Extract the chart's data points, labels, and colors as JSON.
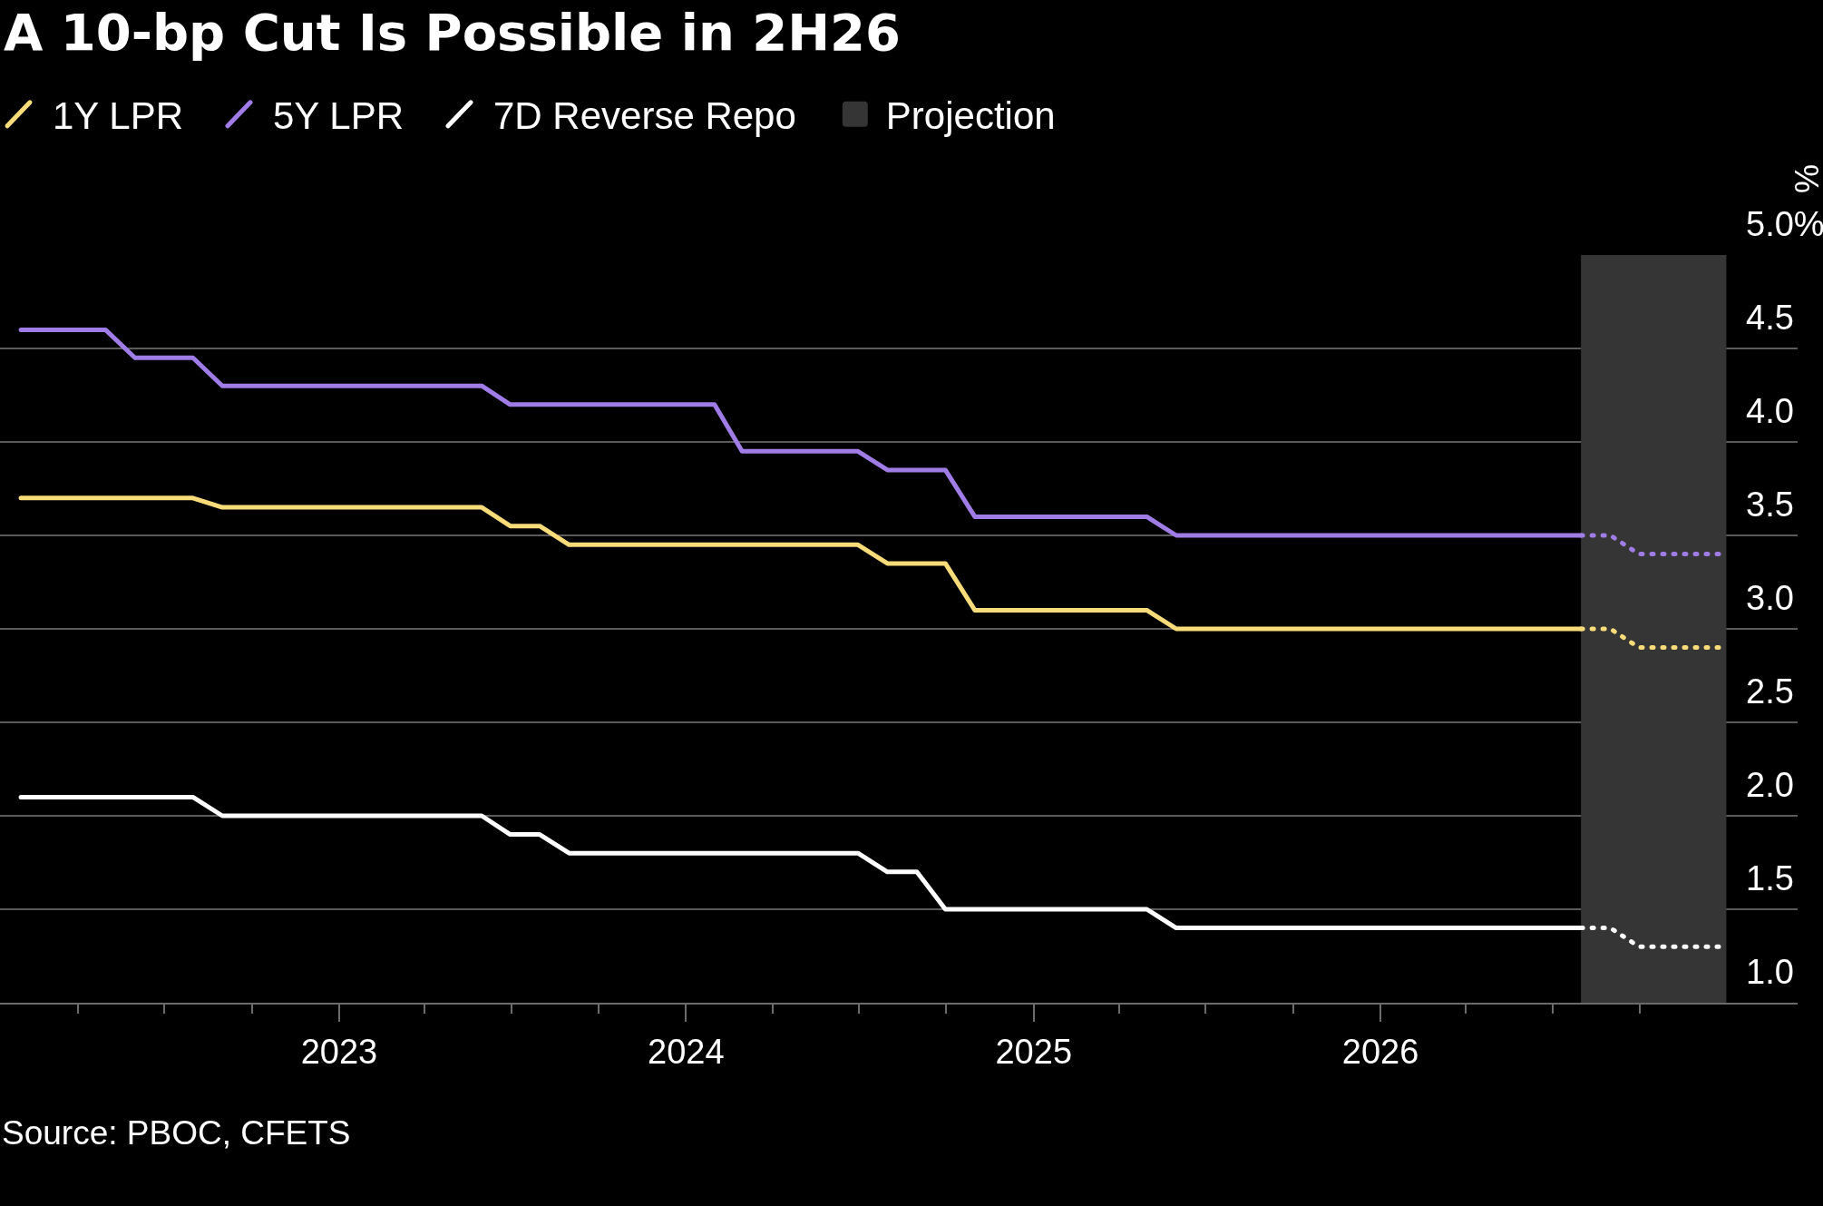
{
  "chart_data": {
    "type": "line",
    "title": "A 10-bp Cut Is Possible in 2H26",
    "ylabel": "%",
    "annotations": [
      "Source: PBOC, CFETS"
    ],
    "series": [
      {
        "name": "1Y LPR",
        "color": "#f9dc7a",
        "x": [
          "2022-01-31",
          "2022-07-31",
          "2022-08-31",
          "2023-05-31",
          "2023-06-30",
          "2023-07-31",
          "2023-08-31",
          "2024-06-30",
          "2024-07-31",
          "2024-09-30",
          "2024-10-31",
          "2025-04-30",
          "2025-05-31",
          "2026-07-31"
        ],
        "values": [
          3.7,
          3.7,
          3.65,
          3.65,
          3.55,
          3.55,
          3.45,
          3.45,
          3.35,
          3.35,
          3.1,
          3.1,
          3.0,
          3.0
        ]
      },
      {
        "name": "5Y LPR",
        "color": "#a07de6",
        "x": [
          "2022-01-31",
          "2022-04-30",
          "2022-05-31",
          "2022-07-31",
          "2022-08-31",
          "2023-05-31",
          "2023-06-30",
          "2024-01-31",
          "2024-02-29",
          "2024-06-30",
          "2024-07-31",
          "2024-09-30",
          "2024-10-31",
          "2025-04-30",
          "2025-05-31",
          "2026-07-31"
        ],
        "values": [
          4.6,
          4.6,
          4.45,
          4.45,
          4.3,
          4.3,
          4.2,
          4.2,
          3.95,
          3.95,
          3.85,
          3.85,
          3.6,
          3.6,
          3.5,
          3.5
        ]
      },
      {
        "name": "7D Reverse Repo",
        "color": "#ffffff",
        "x": [
          "2022-01-31",
          "2022-07-31",
          "2022-08-31",
          "2023-05-31",
          "2023-06-30",
          "2023-07-31",
          "2023-08-31",
          "2024-06-30",
          "2024-07-31",
          "2024-08-31",
          "2024-09-30",
          "2025-04-30",
          "2025-05-31",
          "2026-07-31"
        ],
        "values": [
          2.1,
          2.1,
          2.0,
          2.0,
          1.9,
          1.9,
          1.8,
          1.8,
          1.7,
          1.7,
          1.5,
          1.5,
          1.4,
          1.4
        ]
      },
      {
        "color": "#f9dc7a",
        "line_style": "dotted",
        "x": [
          "2026-07-31",
          "2026-08-31",
          "2026-09-30",
          "2026-12-31"
        ],
        "values": [
          3.0,
          3.0,
          2.9,
          2.9
        ]
      },
      {
        "color": "#a07de6",
        "line_style": "dotted",
        "x": [
          "2026-07-31",
          "2026-08-31",
          "2026-09-30",
          "2026-12-31"
        ],
        "values": [
          3.5,
          3.5,
          3.4,
          3.4
        ]
      },
      {
        "color": "#ffffff",
        "line_style": "dotted",
        "x": [
          "2026-07-31",
          "2026-08-31",
          "2026-09-30",
          "2026-12-31"
        ],
        "values": [
          1.4,
          1.4,
          1.3,
          1.3
        ]
      }
    ],
    "bands": [
      {
        "axis": "x",
        "from": "2026-07-31",
        "to": "2026-12-31",
        "label": "Projection",
        "color": "#353535"
      }
    ],
    "xlim": [
      "2022-01-09",
      "2027-03-16"
    ],
    "xticks": [
      {
        "value": "2022-04-01",
        "label": null
      },
      {
        "value": "2022-07-01",
        "label": null
      },
      {
        "value": "2022-10-01",
        "label": null
      },
      {
        "value": "2023-01-01",
        "label": "2023"
      },
      {
        "value": "2023-04-01",
        "label": null
      },
      {
        "value": "2023-07-01",
        "label": null
      },
      {
        "value": "2023-10-01",
        "label": null
      },
      {
        "value": "2024-01-01",
        "label": "2024"
      },
      {
        "value": "2024-04-01",
        "label": null
      },
      {
        "value": "2024-07-01",
        "label": null
      },
      {
        "value": "2024-10-01",
        "label": null
      },
      {
        "value": "2025-01-01",
        "label": "2025"
      },
      {
        "value": "2025-04-01",
        "label": null
      },
      {
        "value": "2025-07-01",
        "label": null
      },
      {
        "value": "2025-10-01",
        "label": null
      },
      {
        "value": "2026-01-01",
        "label": "2026"
      },
      {
        "value": "2026-04-01",
        "label": null
      },
      {
        "value": "2026-07-01",
        "label": null
      },
      {
        "value": "2026-10-01",
        "label": null
      }
    ],
    "ylim": [
      1,
      5
    ],
    "yticks": [
      {
        "value": 1,
        "label": "1.0"
      },
      1.5,
      {
        "value": 2,
        "label": "2.0"
      },
      2.5,
      {
        "value": 3,
        "label": "3.0"
      },
      3.5,
      {
        "value": 4,
        "label": "4.0"
      },
      4.5,
      {
        "value": 5,
        "label": "5.0%"
      }
    ],
    "grid": "y",
    "legend": "top left",
    "line_style": "solid"
  }
}
